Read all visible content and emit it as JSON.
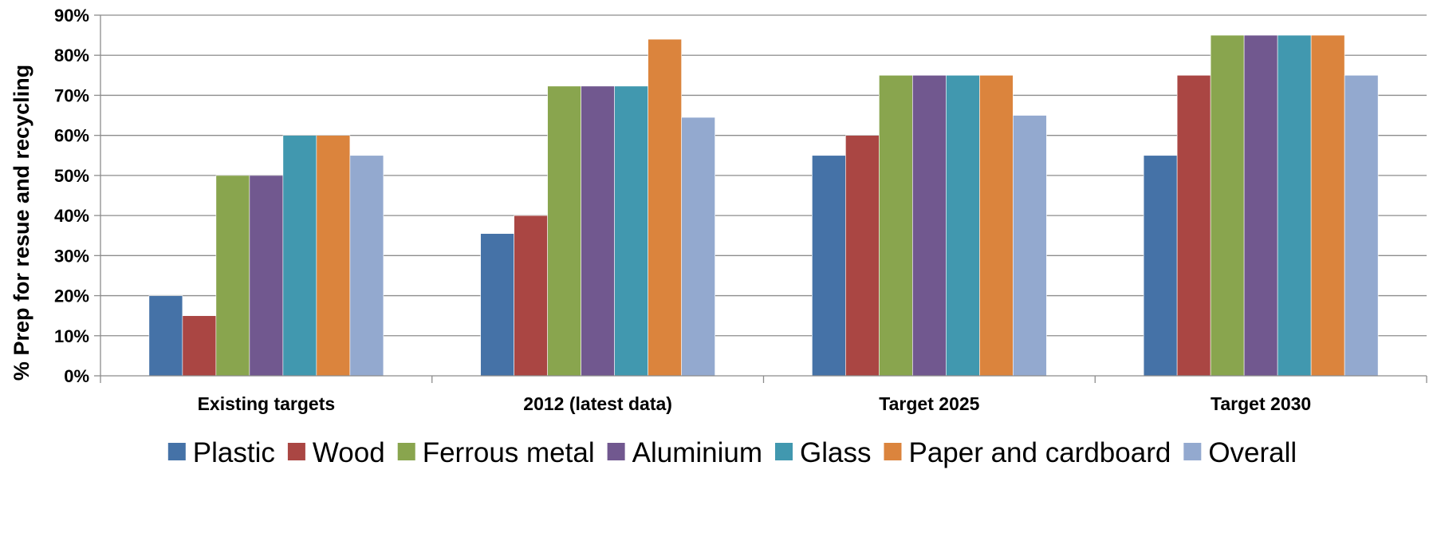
{
  "chart_data": {
    "type": "bar",
    "title": "",
    "xlabel": "",
    "ylabel": "% Prep for resue and recycling",
    "ylim": [
      0,
      90
    ],
    "yticks": [
      "0%",
      "10%",
      "20%",
      "30%",
      "40%",
      "50%",
      "60%",
      "70%",
      "80%",
      "90%"
    ],
    "grid": true,
    "legend_position": "bottom",
    "categories": [
      "Existing targets",
      "2012 (latest data)",
      "Target 2025",
      "Target 2030"
    ],
    "series": [
      {
        "name": "Plastic",
        "color": "#4572A7",
        "values": [
          20,
          35.5,
          55,
          55
        ]
      },
      {
        "name": "Wood",
        "color": "#AA4643",
        "values": [
          15,
          40,
          60,
          75
        ]
      },
      {
        "name": "Ferrous metal",
        "color": "#89A54E",
        "values": [
          50,
          72.3,
          75,
          85
        ]
      },
      {
        "name": "Aluminium",
        "color": "#71588F",
        "values": [
          50,
          72.3,
          75,
          85
        ]
      },
      {
        "name": "Glass",
        "color": "#4198AF",
        "values": [
          60,
          72.3,
          75,
          85
        ]
      },
      {
        "name": "Paper and cardboard",
        "color": "#DB843D",
        "values": [
          60,
          84,
          75,
          85
        ]
      },
      {
        "name": "Overall",
        "color": "#93A9CF",
        "values": [
          55,
          64.5,
          65,
          75
        ]
      }
    ]
  }
}
